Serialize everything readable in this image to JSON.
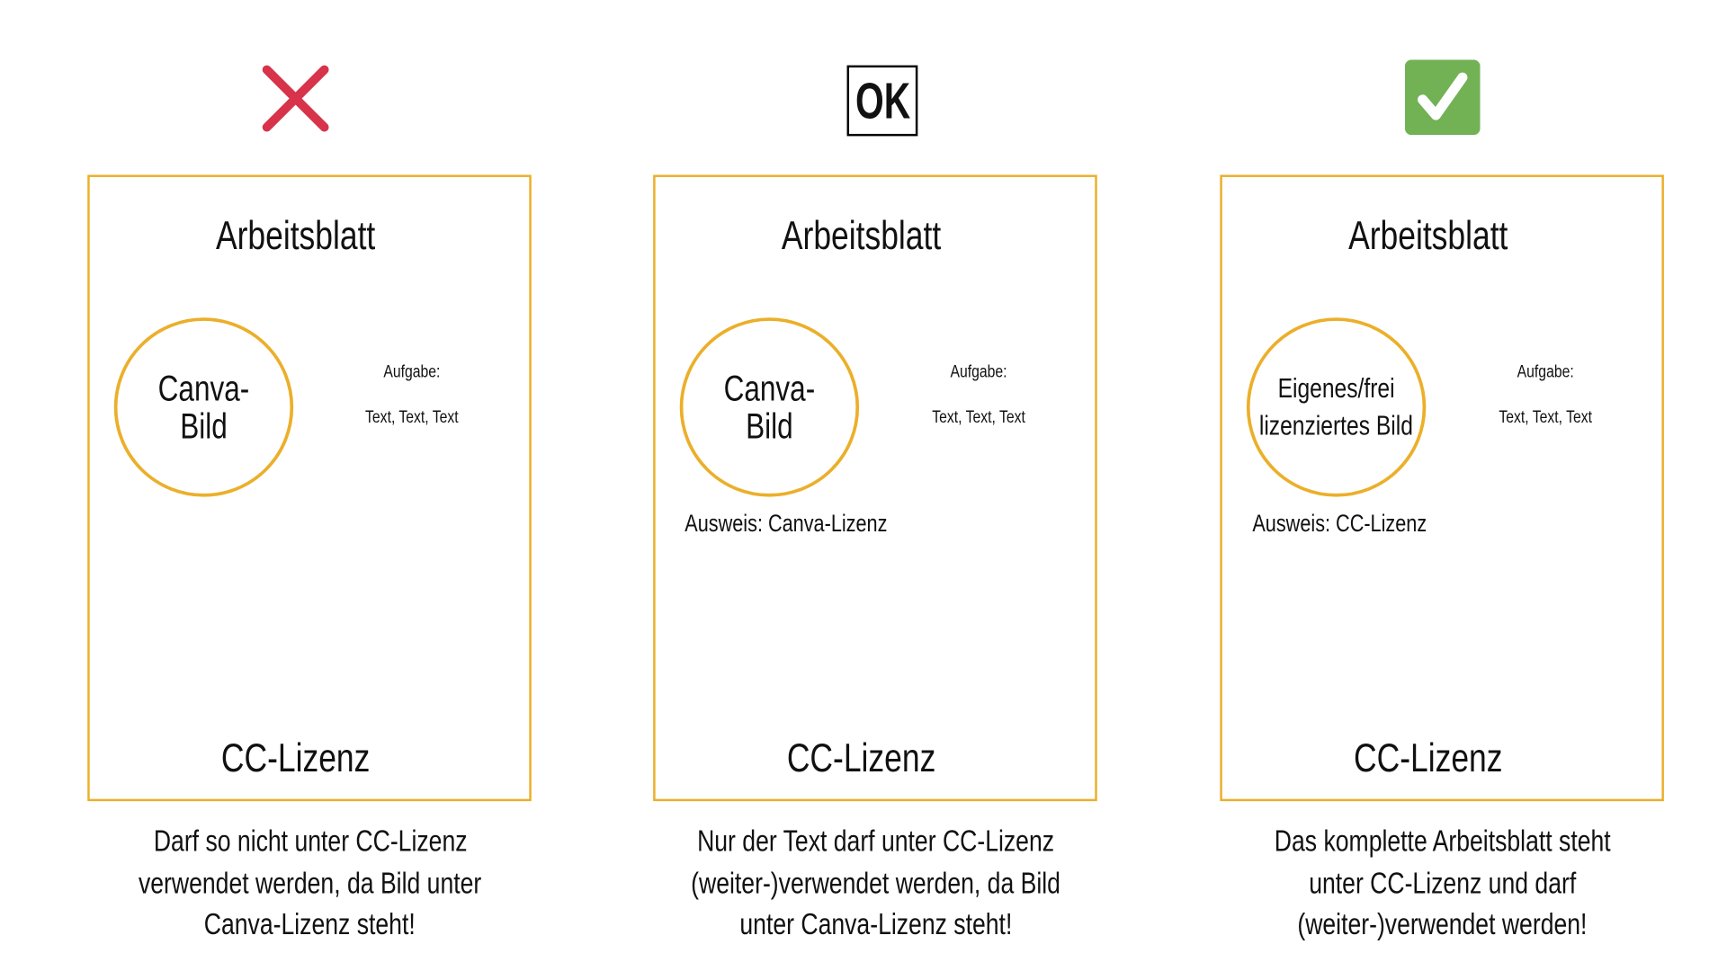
{
  "colors": {
    "border": "#EBAF2A",
    "cross": "#D7334A",
    "check_bg": "#72B255"
  },
  "columns": [
    {
      "status_icon": "red-cross-icon",
      "title": "Arbeitsblatt",
      "image_label": "Canva-Bild",
      "task_label": "Aufgabe:",
      "task_text": "Text, Text, Text",
      "credit": "",
      "license": "CC-Lizenz",
      "caption": [
        "Darf so nicht unter CC-Lizenz",
        "verwendet werden, da Bild unter",
        "Canva-Lizenz steht!"
      ]
    },
    {
      "status_icon": "ok-box-icon",
      "status_text": "OK",
      "title": "Arbeitsblatt",
      "image_label": "Canva-Bild",
      "task_label": "Aufgabe:",
      "task_text": "Text, Text, Text",
      "credit": "Ausweis: Canva-Lizenz",
      "license": "CC-Lizenz",
      "caption": [
        "Nur der Text darf unter CC-Lizenz",
        "(weiter-)verwendet werden, da Bild",
        "unter Canva-Lizenz steht!"
      ]
    },
    {
      "status_icon": "green-check-icon",
      "title": "Arbeitsblatt",
      "image_label_lines": [
        "Eigenes/frei",
        "lizenziertes Bild"
      ],
      "task_label": "Aufgabe:",
      "task_text": "Text, Text, Text",
      "credit": "Ausweis: CC-Lizenz",
      "license": "CC-Lizenz",
      "caption": [
        "Das komplette Arbeitsblatt steht",
        "unter CC-Lizenz und darf",
        "(weiter-)verwendet werden!"
      ]
    }
  ]
}
